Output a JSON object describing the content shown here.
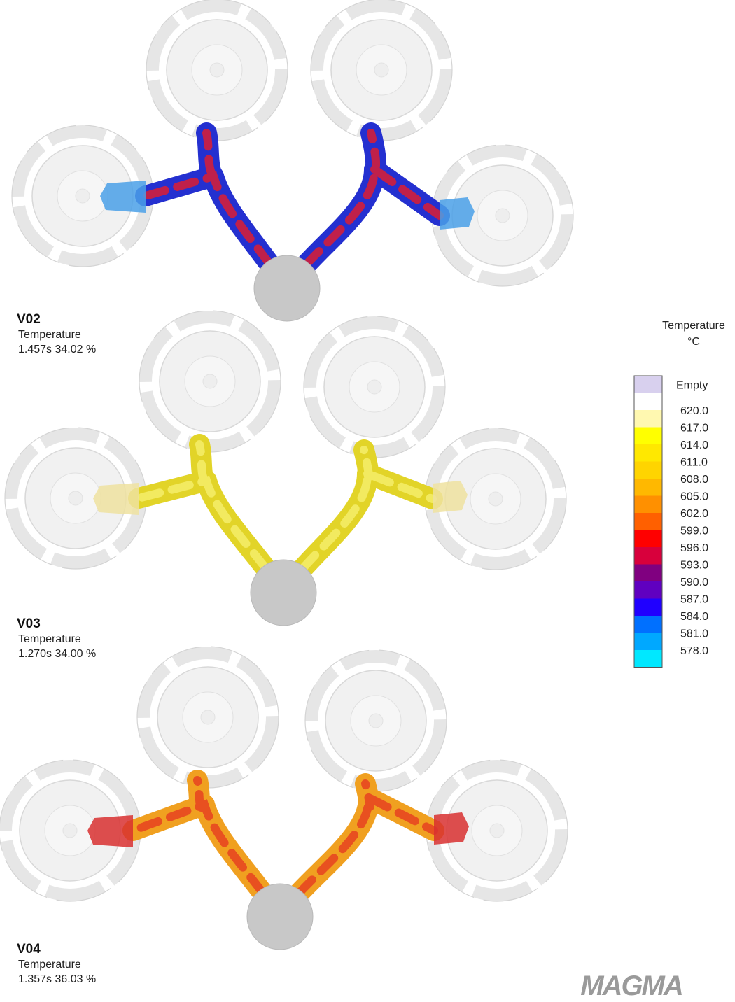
{
  "panels": [
    {
      "name": "V02",
      "quantity": "Temperature",
      "status": "1.457s 34.02 %"
    },
    {
      "name": "V03",
      "quantity": "Temperature",
      "status": "1.270s 34.00 %"
    },
    {
      "name": "V04",
      "quantity": "Temperature",
      "status": "1.357s 36.03 %"
    }
  ],
  "legend": {
    "title": "Temperature",
    "unit": "°C",
    "empty_label": "Empty",
    "labels": [
      "620.0",
      "617.0",
      "614.0",
      "611.0",
      "608.0",
      "605.0",
      "602.0",
      "599.0",
      "596.0",
      "593.0",
      "590.0",
      "587.0",
      "584.0",
      "581.0",
      "578.0"
    ],
    "colors": [
      "#d8d0ee",
      "#ffffff",
      "#fff8b0",
      "#ffff00",
      "#ffe800",
      "#ffd400",
      "#ffb800",
      "#ff9000",
      "#ff6000",
      "#ff0000",
      "#d8003c",
      "#800080",
      "#6000c0",
      "#2000ff",
      "#0070ff",
      "#00a8ff",
      "#00e8ff"
    ]
  },
  "logo": "MAGMA"
}
